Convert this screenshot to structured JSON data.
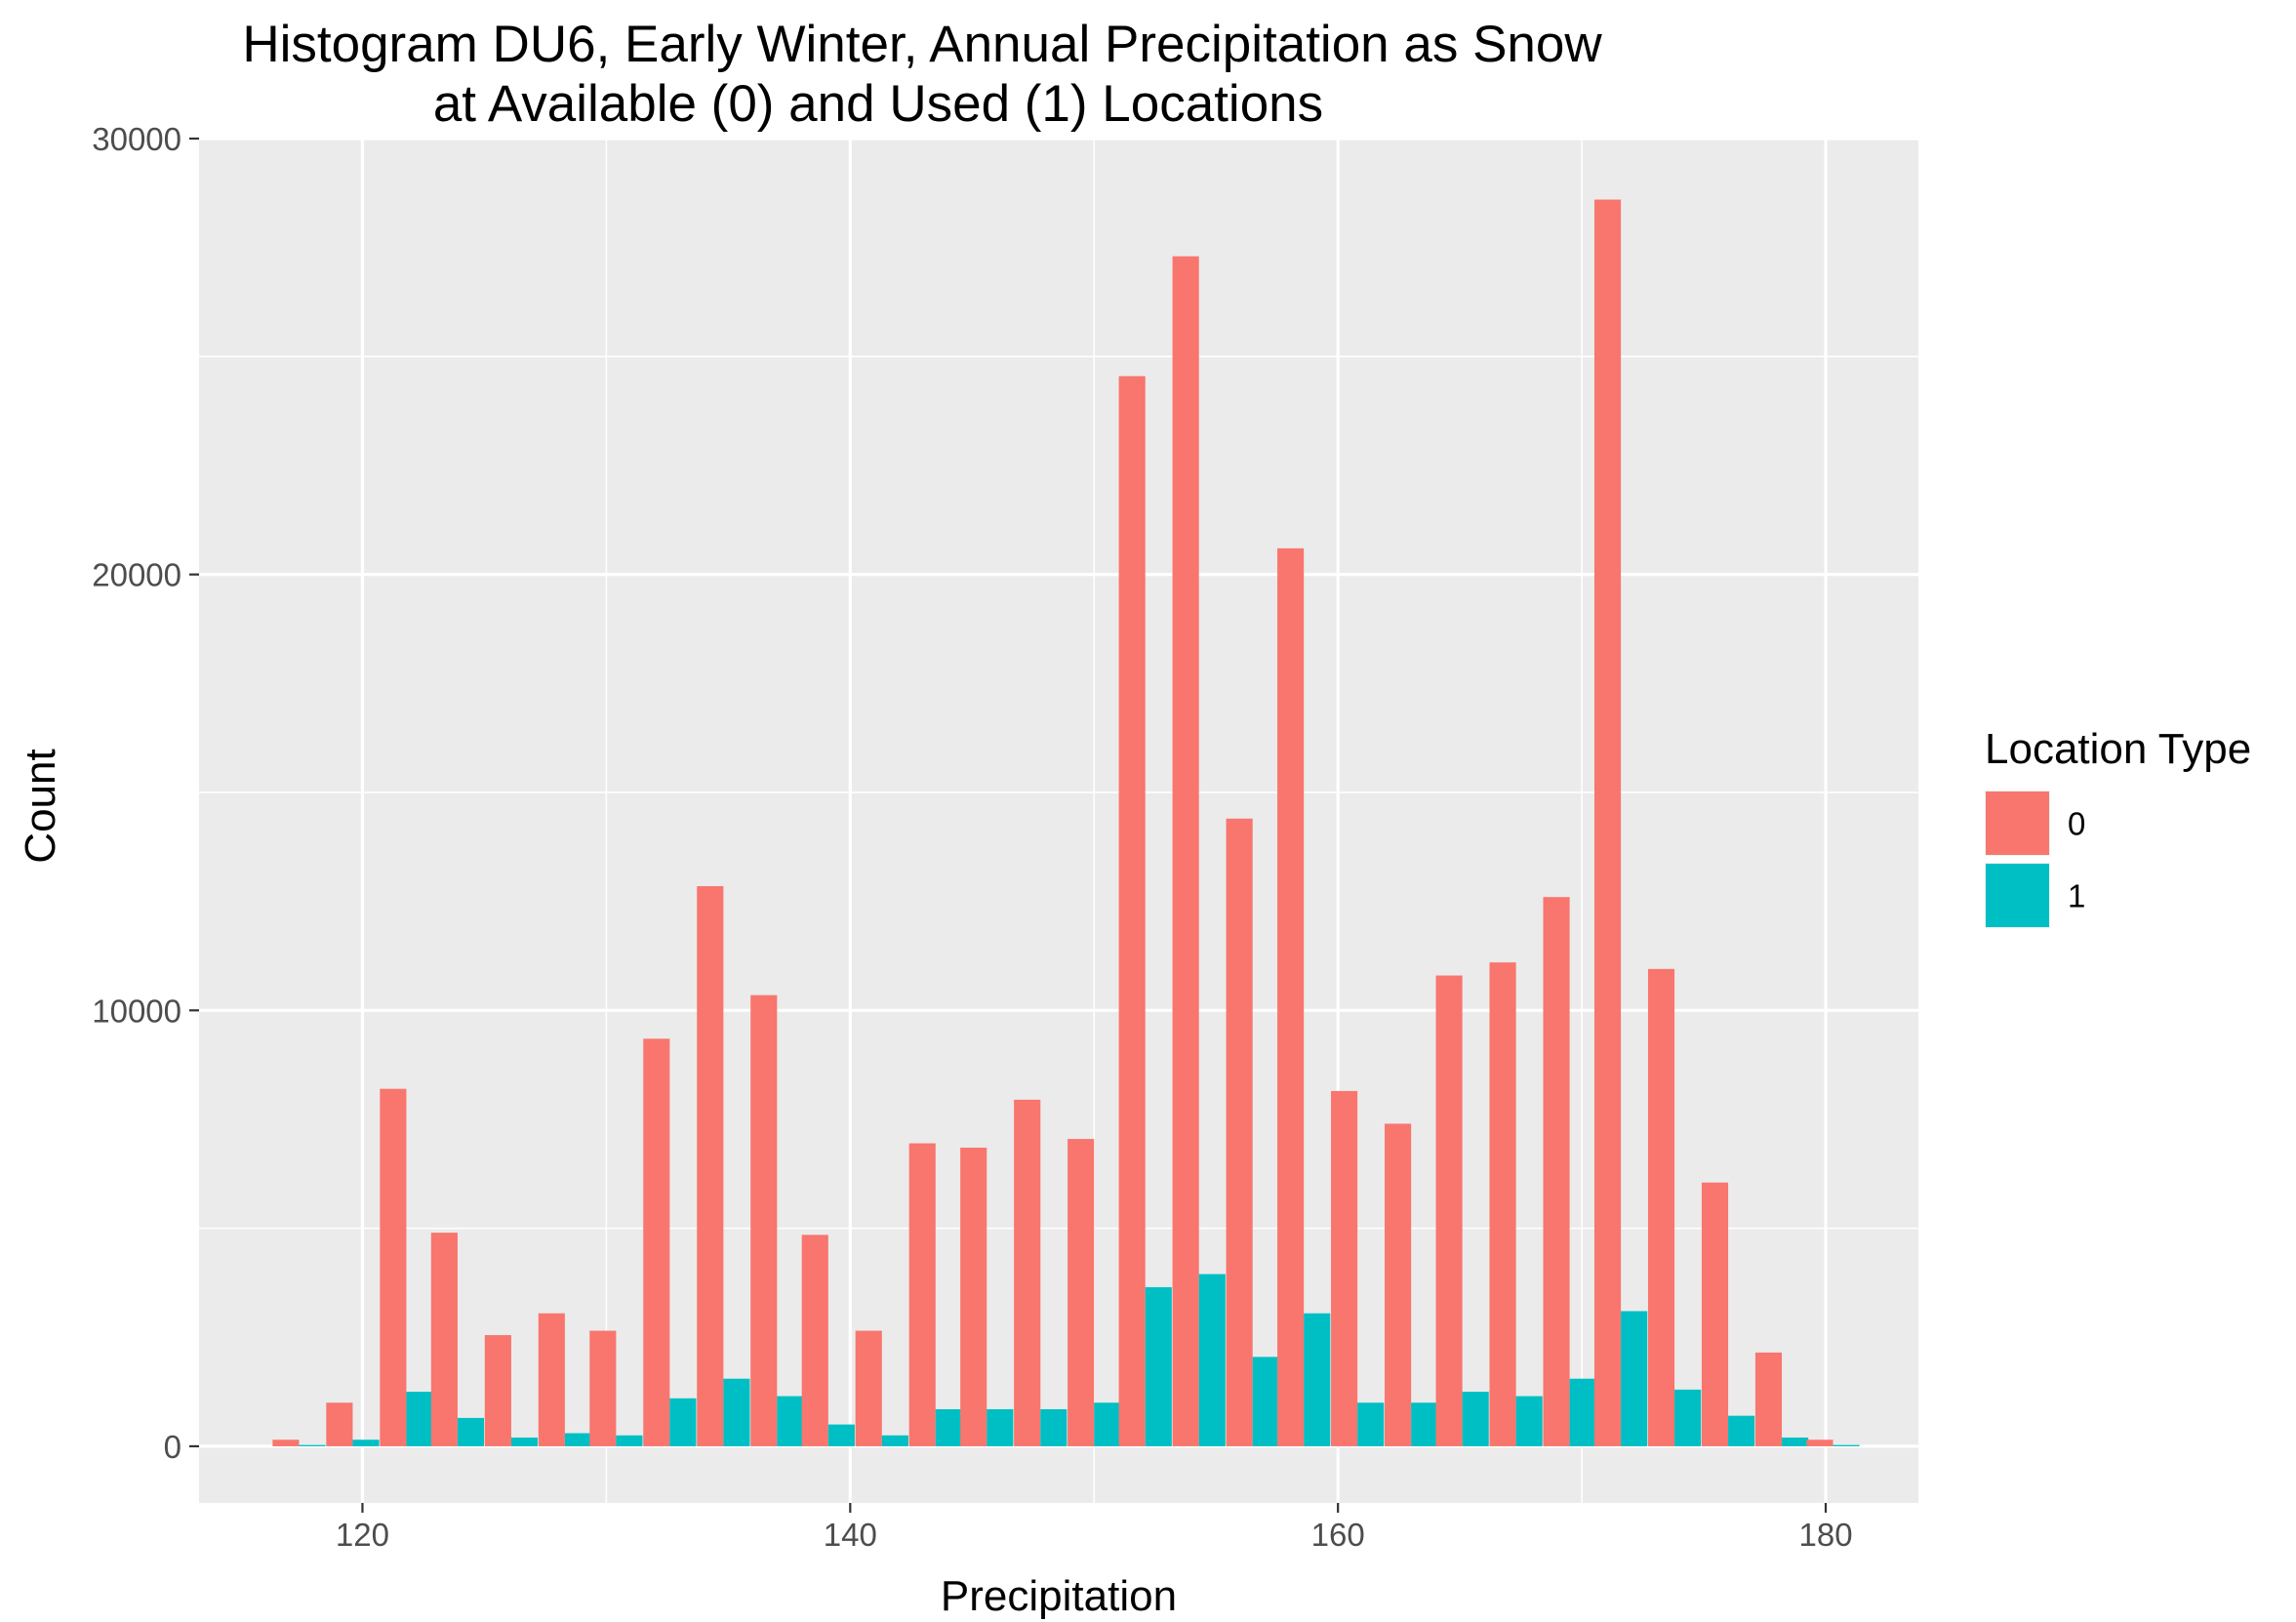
{
  "chart_data": {
    "type": "bar",
    "title": "Histogram DU6, Early Winter, Annual Precipitation as Snow",
    "subtitle": "at Available (0) and Used (1) Locations",
    "xlabel": "Precipitation",
    "ylabel": "Count",
    "xlim": [
      113.3,
      183.8
    ],
    "ylim": [
      -1300,
      30000
    ],
    "x_ticks": [
      120,
      140,
      160,
      180
    ],
    "x_tick_labels": [
      "120",
      "140",
      "160",
      "180"
    ],
    "y_ticks": [
      0,
      10000,
      20000,
      30000
    ],
    "y_tick_labels": [
      "0",
      "10000",
      "20000",
      "30000"
    ],
    "bin_width": 2.17,
    "bin_centers": [
      117.4,
      119.6,
      121.8,
      123.9,
      126.1,
      128.3,
      130.4,
      132.6,
      134.8,
      137.0,
      139.1,
      141.3,
      143.5,
      145.6,
      147.8,
      150.0,
      152.1,
      154.3,
      156.5,
      158.6,
      160.8,
      163.0,
      165.1,
      167.3,
      169.5,
      171.6,
      173.8,
      176.0,
      178.2,
      180.3
    ],
    "grid": true,
    "legend": {
      "title": "Location Type",
      "placement": "right"
    },
    "series": [
      {
        "name": "0",
        "color": "#F8766D",
        "values": [
          150,
          1000,
          8200,
          4900,
          2550,
          3050,
          2650,
          9350,
          12850,
          10350,
          4850,
          2650,
          6950,
          6850,
          7950,
          7050,
          24550,
          27300,
          14400,
          20600,
          8150,
          7400,
          10800,
          11100,
          12600,
          28600,
          10950,
          6050,
          2150,
          150
        ]
      },
      {
        "name": "1",
        "color": "#00BFC4",
        "values": [
          30,
          150,
          1250,
          650,
          200,
          300,
          250,
          1100,
          1550,
          1150,
          500,
          250,
          850,
          850,
          850,
          1000,
          3650,
          3950,
          2050,
          3050,
          1000,
          1000,
          1250,
          1150,
          1550,
          3100,
          1300,
          700,
          200,
          30
        ]
      }
    ]
  }
}
